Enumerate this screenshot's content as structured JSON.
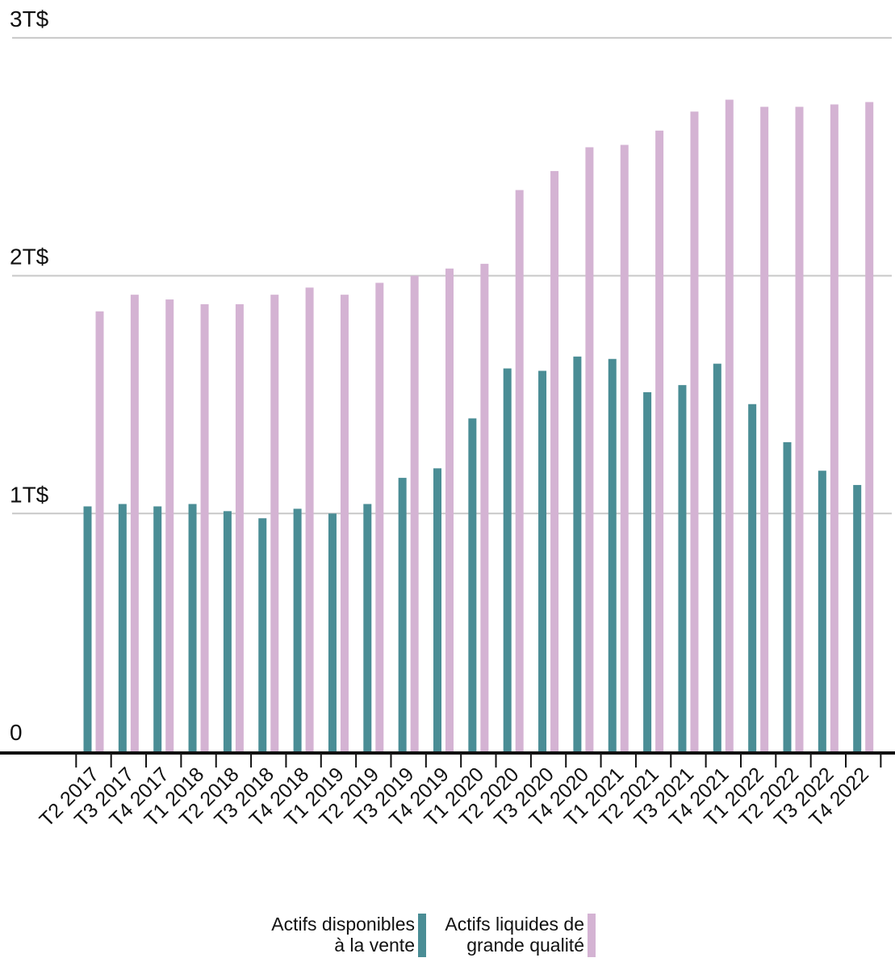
{
  "chart_data": {
    "type": "bar",
    "categories": [
      "T2 2017",
      "T3 2017",
      "T4 2017",
      "T1 2018",
      "T2 2018",
      "T3 2018",
      "T4 2018",
      "T1 2019",
      "T2 2019",
      "T3 2019",
      "T4 2019",
      "T1 2020",
      "T2 2020",
      "T3 2020",
      "T4 2020",
      "T1 2021",
      "T2 2021",
      "T3 2021",
      "T4 2021",
      "T1 2022",
      "T2 2022",
      "T3 2022",
      "T4 2022"
    ],
    "series": [
      {
        "name": "Actifs disponibles à la vente",
        "name_lines": [
          "Actifs disponibles",
          "à la vente"
        ],
        "color": "#4a8d95",
        "values": [
          1.03,
          1.04,
          1.03,
          1.04,
          1.01,
          0.98,
          1.02,
          1.0,
          1.04,
          1.15,
          1.19,
          1.4,
          1.61,
          1.6,
          1.66,
          1.65,
          1.51,
          1.54,
          1.63,
          1.46,
          1.3,
          1.18,
          1.12
        ]
      },
      {
        "name": "Actifs liquides de grande qualité",
        "name_lines": [
          "Actifs liquides de",
          "grande qualité"
        ],
        "color": "#d4b3d3",
        "values": [
          1.85,
          1.92,
          1.9,
          1.88,
          1.88,
          1.92,
          1.95,
          1.92,
          1.97,
          2.0,
          2.03,
          2.05,
          2.36,
          2.44,
          2.54,
          2.55,
          2.61,
          2.69,
          2.74,
          2.71,
          2.71,
          2.72,
          2.73
        ]
      }
    ],
    "y_ticks": [
      {
        "value": 0,
        "label": "0"
      },
      {
        "value": 1,
        "label": "1T$"
      },
      {
        "value": 2,
        "label": "2T$"
      },
      {
        "value": 3,
        "label": "3T$"
      }
    ],
    "ylim": [
      0,
      3
    ],
    "grid": true,
    "legend_position": "bottom-center",
    "title": "",
    "xlabel": "",
    "ylabel": ""
  }
}
